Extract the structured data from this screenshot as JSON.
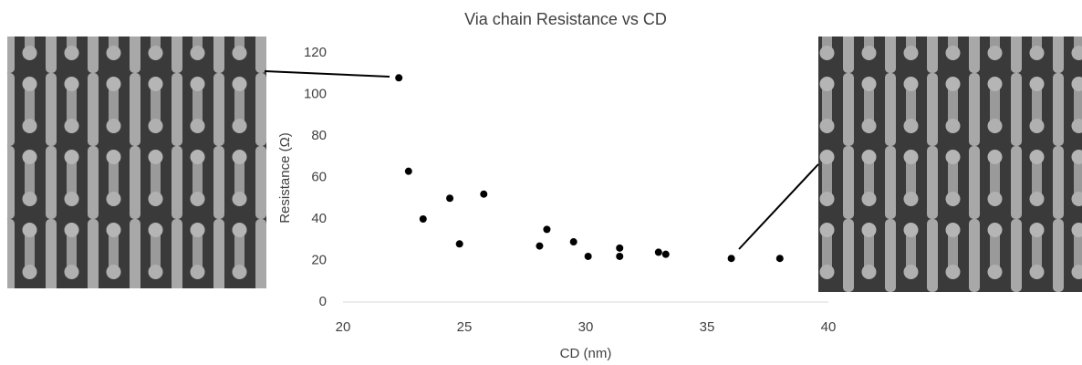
{
  "chart_data": {
    "type": "scatter",
    "title": "Via chain Resistance vs CD",
    "x_label": "CD (nm)",
    "y_label": "Resistance (Ω)",
    "x": [
      22.3,
      22.7,
      23.3,
      24.4,
      24.8,
      25.8,
      28.1,
      28.4,
      29.5,
      30.1,
      31.4,
      31.4,
      33.0,
      33.3,
      36.0,
      38.0
    ],
    "values": [
      108,
      63,
      40,
      50,
      28,
      52,
      27,
      35,
      29,
      22,
      26,
      22,
      24,
      23,
      21,
      21
    ],
    "color": "#000000",
    "xlim": [
      20,
      40
    ],
    "xticks": [
      20,
      25,
      30,
      35,
      40
    ],
    "ylim": [
      0,
      120
    ],
    "yticks": [
      0,
      20,
      40,
      60,
      80,
      100,
      120
    ],
    "grid": false
  }
}
